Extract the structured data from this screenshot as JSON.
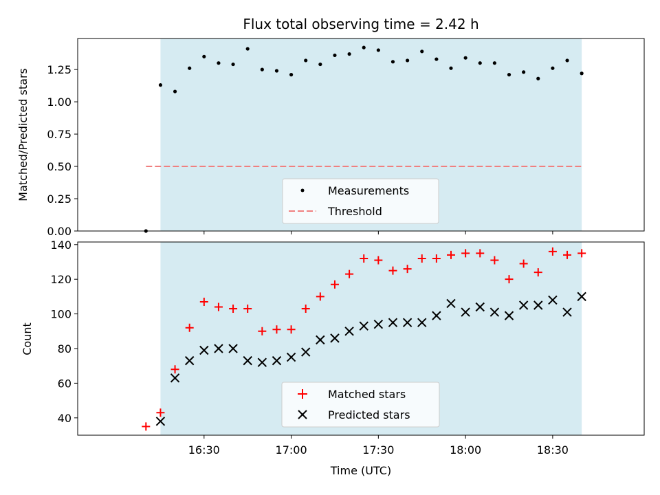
{
  "chart_data": {
    "title": "Flux total observing time = 2.42 h",
    "xlabel": "Time (UTC)",
    "x_unit": "minutes since 16:00 UTC",
    "xlim": [
      -13.5,
      181.5
    ],
    "x_ticks": [
      {
        "value": 30,
        "label": "16:30"
      },
      {
        "value": 60,
        "label": "17:00"
      },
      {
        "value": 90,
        "label": "17:30"
      },
      {
        "value": 120,
        "label": "18:00"
      },
      {
        "value": 150,
        "label": "18:30"
      }
    ],
    "observing_window": {
      "start": 15,
      "end": 160,
      "color": "#add8e6"
    },
    "panels": [
      {
        "type": "scatter",
        "ylabel": "Matched/Predicted stars",
        "ylim": [
          0,
          1.49
        ],
        "y_ticks": [
          "0.00",
          "0.25",
          "0.50",
          "0.75",
          "1.00",
          "1.25"
        ],
        "y_tick_values": [
          0,
          0.25,
          0.5,
          0.75,
          1.0,
          1.25
        ],
        "threshold": {
          "value": 0.5,
          "x_start": 10,
          "x_end": 160,
          "color": "#f08080"
        },
        "series": [
          {
            "name": "Measurements",
            "marker": "dot",
            "color": "#000000",
            "x": [
              10,
              15,
              20,
              25,
              30,
              35,
              40,
              45,
              50,
              55,
              60,
              65,
              70,
              75,
              80,
              85,
              90,
              95,
              100,
              105,
              110,
              115,
              120,
              125,
              130,
              135,
              140,
              145,
              150,
              155,
              160
            ],
            "y": [
              0.0,
              1.13,
              1.08,
              1.26,
              1.35,
              1.3,
              1.29,
              1.41,
              1.25,
              1.24,
              1.21,
              1.32,
              1.29,
              1.36,
              1.37,
              1.42,
              1.4,
              1.31,
              1.32,
              1.39,
              1.33,
              1.26,
              1.34,
              1.3,
              1.3,
              1.21,
              1.23,
              1.18,
              1.26,
              1.32,
              1.22
            ]
          }
        ],
        "legend": [
          "Measurements",
          "Threshold"
        ],
        "legend_position": "lower-center"
      },
      {
        "type": "scatter",
        "ylabel": "Count",
        "ylim": [
          30,
          141.5
        ],
        "y_ticks": [
          "40",
          "60",
          "80",
          "100",
          "120",
          "140"
        ],
        "y_tick_values": [
          40,
          60,
          80,
          100,
          120,
          140
        ],
        "series": [
          {
            "name": "Matched stars",
            "marker": "plus",
            "color": "#ff0000",
            "x": [
              10,
              15,
              20,
              25,
              30,
              35,
              40,
              45,
              50,
              55,
              60,
              65,
              70,
              75,
              80,
              85,
              90,
              95,
              100,
              105,
              110,
              115,
              120,
              125,
              130,
              135,
              140,
              145,
              150,
              155,
              160
            ],
            "y": [
              35,
              43,
              68,
              92,
              107,
              104,
              103,
              103,
              90,
              91,
              91,
              103,
              110,
              117,
              123,
              132,
              131,
              125,
              126,
              132,
              132,
              134,
              135,
              135,
              131,
              120,
              129,
              124,
              136,
              134,
              135
            ]
          },
          {
            "name": "Predicted stars",
            "marker": "x",
            "color": "#000000",
            "x": [
              15,
              20,
              25,
              30,
              35,
              40,
              45,
              50,
              55,
              60,
              65,
              70,
              75,
              80,
              85,
              90,
              95,
              100,
              105,
              110,
              115,
              120,
              125,
              130,
              135,
              140,
              145,
              150,
              155,
              160
            ],
            "y": [
              38,
              63,
              73,
              79,
              80,
              80,
              73,
              72,
              73,
              75,
              78,
              85,
              86,
              90,
              93,
              94,
              95,
              95,
              95,
              99,
              106,
              101,
              104,
              101,
              99,
              105,
              105,
              108,
              101,
              110
            ]
          }
        ],
        "legend": [
          "Matched stars",
          "Predicted stars"
        ],
        "legend_position": "lower-center"
      }
    ]
  }
}
